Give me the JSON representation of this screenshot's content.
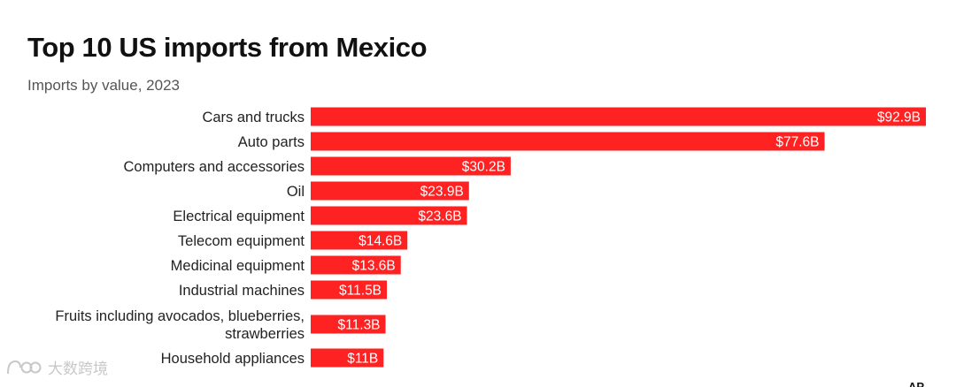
{
  "chart_data": {
    "type": "bar",
    "orientation": "horizontal",
    "title": "Top 10 US imports from Mexico",
    "subtitle": "Imports by value, 2023",
    "unit": "billions USD",
    "bar_color": "#ff2222",
    "categories": [
      [
        "Cars and trucks"
      ],
      [
        "Auto parts"
      ],
      [
        "Computers and accessories"
      ],
      [
        "Oil"
      ],
      [
        "Electrical equipment"
      ],
      [
        "Telecom equipment"
      ],
      [
        "Medicinal equipment"
      ],
      [
        "Industrial machines"
      ],
      [
        "Fruits including avocados, blueberries,",
        "strawberries"
      ],
      [
        "Household appliances"
      ]
    ],
    "values": [
      92.9,
      77.6,
      30.2,
      23.9,
      23.6,
      14.6,
      13.6,
      11.5,
      11.3,
      11.0
    ],
    "value_labels": [
      "$92.9B",
      "$77.6B",
      "$30.2B",
      "$23.9B",
      "$23.6B",
      "$14.6B",
      "$13.6B",
      "$11.5B",
      "$11.3B",
      "$11B"
    ],
    "xlim": [
      0,
      92.9
    ],
    "grid": false,
    "legend": "none"
  },
  "watermark": {
    "text": "大数跨境",
    "icon": "logo-loop-icon",
    "color": "#c8c8c8"
  },
  "credit": {
    "text": "AP"
  }
}
